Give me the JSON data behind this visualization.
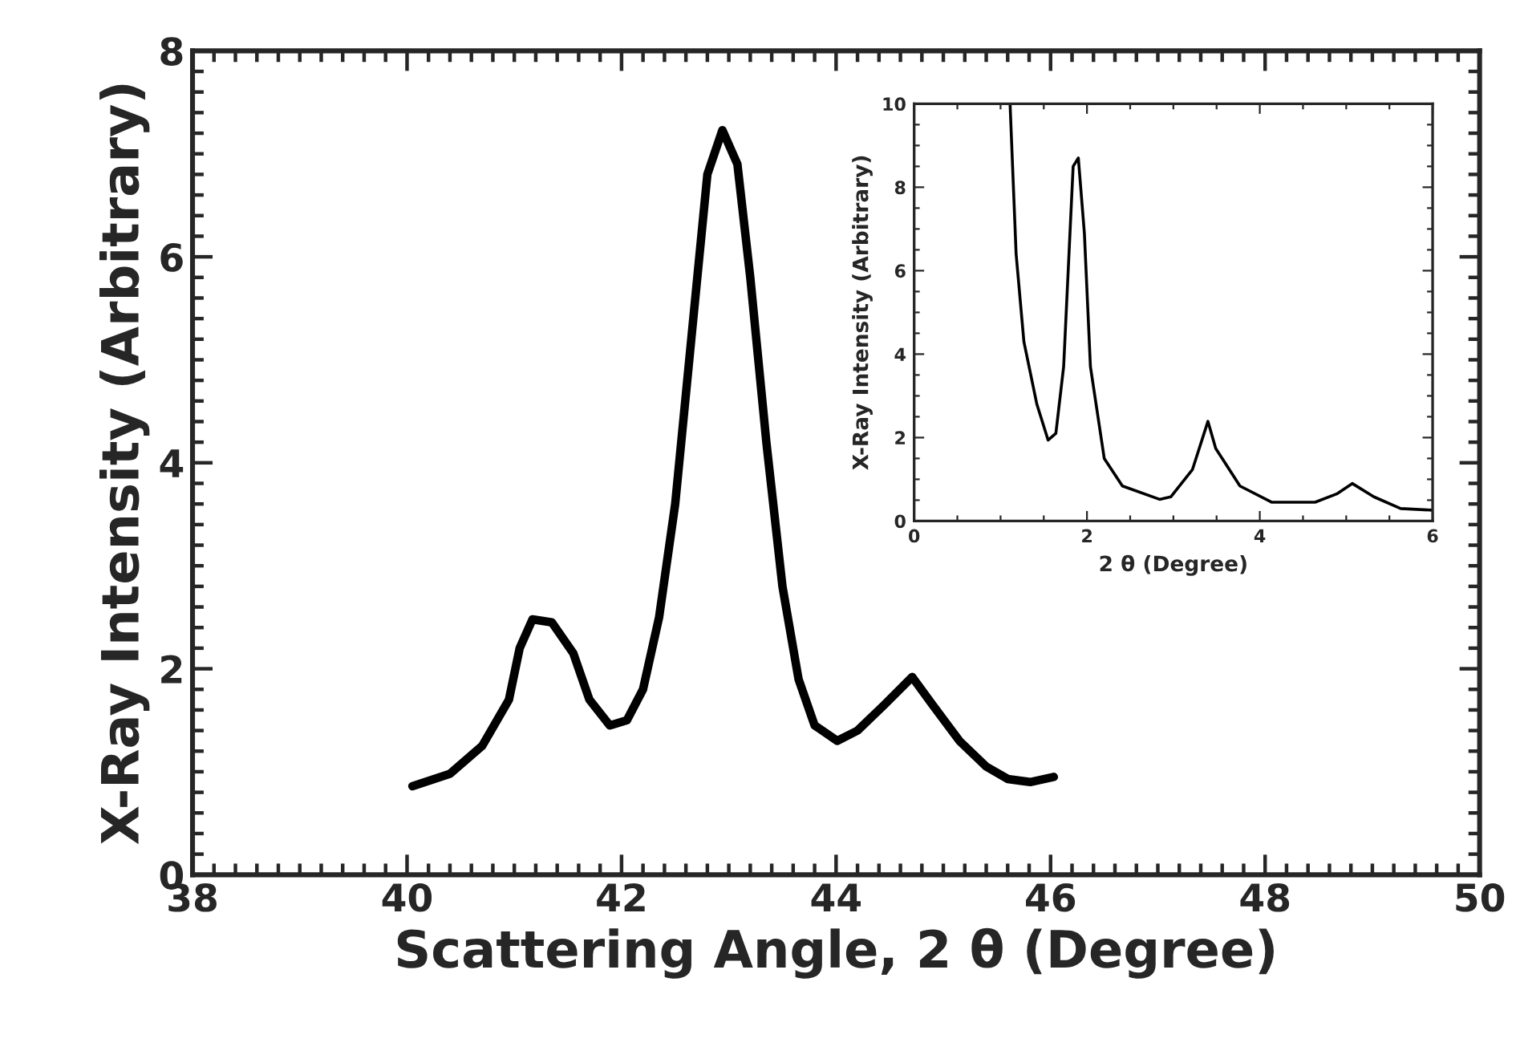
{
  "chart_data": [
    {
      "type": "line",
      "xlabel": "Scattering Angle, 2 θ (Degree)",
      "ylabel": "X-Ray Intensity (Arbitrary)",
      "xlim": [
        38,
        50
      ],
      "ylim": [
        0,
        8
      ],
      "xticks": [
        38,
        40,
        42,
        44,
        46,
        48,
        50
      ],
      "yticks": [
        0,
        2,
        4,
        6,
        8
      ],
      "grid": false,
      "marker": "none",
      "line_style": "solid",
      "series": [
        {
          "color": "#000000",
          "x": [
            40.05,
            40.4,
            40.7,
            40.95,
            41.05,
            41.17,
            41.35,
            41.55,
            41.7,
            41.89,
            42.05,
            42.2,
            42.35,
            42.5,
            42.65,
            42.8,
            42.94,
            43.08,
            43.2,
            43.35,
            43.5,
            43.65,
            43.8,
            44.01,
            44.2,
            44.45,
            44.71,
            44.9,
            45.15,
            45.4,
            45.6,
            45.81,
            46.03
          ],
          "values": [
            0.86,
            0.98,
            1.25,
            1.7,
            2.2,
            2.48,
            2.45,
            2.15,
            1.7,
            1.45,
            1.5,
            1.8,
            2.5,
            3.6,
            5.2,
            6.8,
            7.23,
            6.9,
            5.8,
            4.2,
            2.8,
            1.9,
            1.45,
            1.3,
            1.4,
            1.65,
            1.92,
            1.65,
            1.3,
            1.05,
            0.93,
            0.9,
            0.95
          ]
        }
      ]
    },
    {
      "type": "line",
      "xlabel": "2 θ (Degree)",
      "ylabel": "X-Ray Intensity (Arbitrary)",
      "xlim": [
        0,
        6
      ],
      "ylim": [
        0,
        10
      ],
      "xticks": [
        0,
        2,
        4,
        6
      ],
      "yticks": [
        0,
        2,
        4,
        6,
        8,
        10
      ],
      "grid": false,
      "marker": "none",
      "line_style": "solid",
      "series": [
        {
          "color": "#000000",
          "x": [
            1.11,
            1.18,
            1.27,
            1.42,
            1.55,
            1.64,
            1.73,
            1.84,
            1.9,
            1.97,
            2.04,
            2.2,
            2.41,
            2.84,
            2.97,
            3.22,
            3.4,
            3.49,
            3.77,
            4.14,
            4.64,
            4.89,
            5.07,
            5.32,
            5.63,
            6.0
          ],
          "values": [
            10,
            6.4,
            4.3,
            2.8,
            1.94,
            2.1,
            3.7,
            8.5,
            8.7,
            6.9,
            3.7,
            1.5,
            0.84,
            0.52,
            0.58,
            1.23,
            2.39,
            1.74,
            0.84,
            0.45,
            0.45,
            0.65,
            0.9,
            0.58,
            0.3,
            0.26
          ]
        }
      ]
    }
  ]
}
